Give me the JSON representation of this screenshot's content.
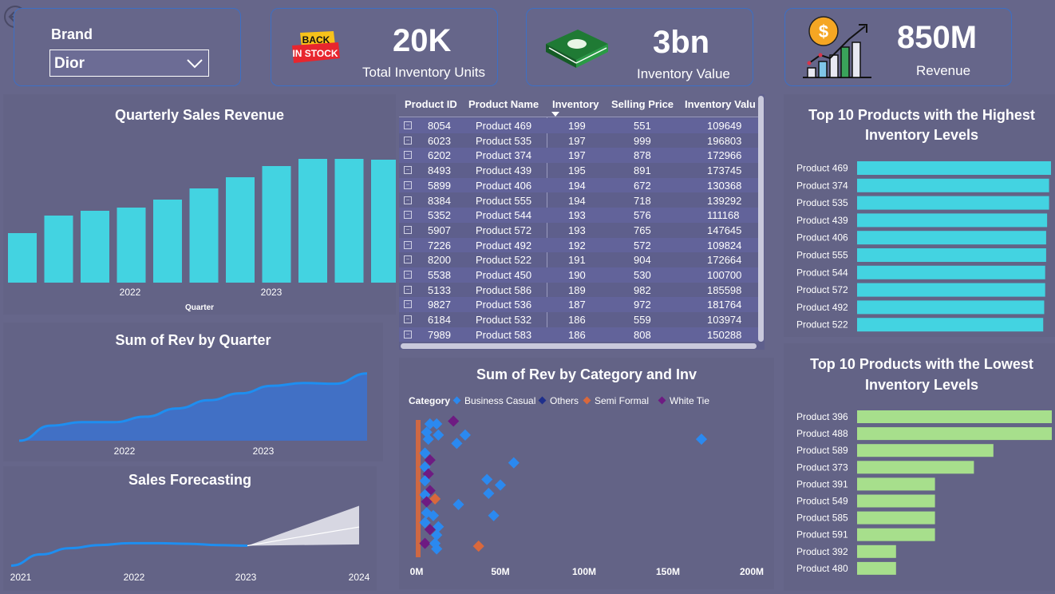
{
  "filter": {
    "label": "Brand",
    "selected": "Dior"
  },
  "kpis": [
    {
      "value": "20K",
      "label": "Total Inventory Units",
      "icon": "back-in-stock-icon",
      "icon_text": [
        "BACK",
        "IN STOCK"
      ]
    },
    {
      "value": "3bn",
      "label": "Inventory Value",
      "icon": "money-stack-icon"
    },
    {
      "value": "850M",
      "label": "Revenue",
      "icon": "revenue-growth-icon"
    }
  ],
  "table": {
    "columns": [
      "Product ID",
      "Product Name",
      "Inventory",
      "Selling Price",
      "Inventory Valu"
    ],
    "rows": [
      [
        "8054",
        "Product 469",
        "199",
        "551",
        "109649"
      ],
      [
        "6023",
        "Product 535",
        "197",
        "999",
        "196803"
      ],
      [
        "6202",
        "Product 374",
        "197",
        "878",
        "172966"
      ],
      [
        "8493",
        "Product 439",
        "195",
        "891",
        "173745"
      ],
      [
        "5899",
        "Product 406",
        "194",
        "672",
        "130368"
      ],
      [
        "8384",
        "Product 555",
        "194",
        "718",
        "139292"
      ],
      [
        "5352",
        "Product 544",
        "193",
        "576",
        "111168"
      ],
      [
        "5907",
        "Product 572",
        "193",
        "765",
        "147645"
      ],
      [
        "7226",
        "Product 492",
        "192",
        "572",
        "109824"
      ],
      [
        "8200",
        "Product 522",
        "191",
        "904",
        "172664"
      ],
      [
        "5538",
        "Product 450",
        "190",
        "530",
        "100700"
      ],
      [
        "5133",
        "Product 586",
        "189",
        "982",
        "185598"
      ],
      [
        "9827",
        "Product 536",
        "187",
        "972",
        "181764"
      ],
      [
        "6184",
        "Product 532",
        "186",
        "559",
        "103974"
      ],
      [
        "7989",
        "Product 583",
        "186",
        "808",
        "150288"
      ]
    ]
  },
  "chart_data": [
    {
      "id": "quarterly",
      "type": "bar",
      "title": "Quarterly Sales Revenue",
      "xlabel": "Quarter",
      "ylabel": "",
      "year_ticks": [
        "2022",
        "2023"
      ],
      "values": [
        62,
        84,
        90,
        94,
        104,
        118,
        132,
        146,
        155,
        155,
        154,
        166
      ],
      "ylim": [
        0,
        170
      ],
      "color": "#43d3e1"
    },
    {
      "id": "rev_quarter",
      "type": "area",
      "title": "Sum of Rev by Quarter",
      "x_ticks": [
        "2022",
        "2023"
      ],
      "values": [
        0,
        22,
        27,
        27,
        35,
        47,
        59,
        69,
        80,
        84,
        83,
        98
      ],
      "ylim": [
        0,
        100
      ],
      "color": "#3f71c8"
    },
    {
      "id": "forecast",
      "type": "line",
      "title": "Sales Forecasting",
      "x_ticks": [
        "2021",
        "2022",
        "2023",
        "2024"
      ],
      "actual": [
        0.02,
        0.2,
        0.3,
        0.35,
        0.38,
        0.38,
        0.37,
        0.35,
        0.34
      ],
      "forecast": [
        0.34,
        0.64
      ],
      "band_upper": [
        0.34,
        0.98
      ],
      "band_lower": [
        0.34,
        0.36
      ],
      "ylim": [
        0,
        1
      ],
      "color": "#1e8ef0"
    },
    {
      "id": "scatter",
      "type": "scatter",
      "title": "Sum of Rev by Category and Inv",
      "legend_title": "Category",
      "legend": [
        {
          "name": "Business Casual",
          "color": "#2b89ef"
        },
        {
          "name": "Others",
          "color": "#1f2f8c"
        },
        {
          "name": "Semi Formal",
          "color": "#d9683c"
        },
        {
          "name": "White Tie",
          "color": "#6e1b82"
        }
      ],
      "x_ticks": [
        "0M",
        "50M",
        "100M",
        "150M",
        "200M"
      ],
      "xlim": [
        0,
        200
      ],
      "ylim": [
        0,
        1
      ],
      "points": [
        {
          "x": 8,
          "y": 0.96,
          "c": 0
        },
        {
          "x": 12,
          "y": 0.96,
          "c": 0
        },
        {
          "x": 22,
          "y": 0.98,
          "c": 3
        },
        {
          "x": 6,
          "y": 0.9,
          "c": 0
        },
        {
          "x": 13,
          "y": 0.88,
          "c": 0
        },
        {
          "x": 29,
          "y": 0.88,
          "c": 0
        },
        {
          "x": 7,
          "y": 0.85,
          "c": 0
        },
        {
          "x": 24,
          "y": 0.82,
          "c": 0
        },
        {
          "x": 170,
          "y": 0.85,
          "c": 0
        },
        {
          "x": 5,
          "y": 0.75,
          "c": 0
        },
        {
          "x": 8,
          "y": 0.7,
          "c": 3
        },
        {
          "x": 58,
          "y": 0.68,
          "c": 0
        },
        {
          "x": 5,
          "y": 0.65,
          "c": 0
        },
        {
          "x": 7,
          "y": 0.6,
          "c": 3
        },
        {
          "x": 42,
          "y": 0.56,
          "c": 0
        },
        {
          "x": 5,
          "y": 0.55,
          "c": 0
        },
        {
          "x": 50,
          "y": 0.52,
          "c": 0
        },
        {
          "x": 8,
          "y": 0.48,
          "c": 3
        },
        {
          "x": 43,
          "y": 0.46,
          "c": 0
        },
        {
          "x": 5,
          "y": 0.45,
          "c": 0
        },
        {
          "x": 11,
          "y": 0.42,
          "c": 2
        },
        {
          "x": 6,
          "y": 0.4,
          "c": 3
        },
        {
          "x": 25,
          "y": 0.38,
          "c": 0
        },
        {
          "x": 6,
          "y": 0.32,
          "c": 0
        },
        {
          "x": 10,
          "y": 0.3,
          "c": 0
        },
        {
          "x": 46,
          "y": 0.3,
          "c": 0
        },
        {
          "x": 5,
          "y": 0.25,
          "c": 0
        },
        {
          "x": 13,
          "y": 0.22,
          "c": 0
        },
        {
          "x": 8,
          "y": 0.2,
          "c": 3
        },
        {
          "x": 12,
          "y": 0.16,
          "c": 0
        },
        {
          "x": 5,
          "y": 0.1,
          "c": 3
        },
        {
          "x": 11,
          "y": 0.1,
          "c": 0
        },
        {
          "x": 37,
          "y": 0.08,
          "c": 2
        },
        {
          "x": 12,
          "y": 0.06,
          "c": 0
        }
      ]
    },
    {
      "id": "top10",
      "type": "bar",
      "orientation": "horizontal",
      "title": "Top 10 Products with the Highest Inventory Levels",
      "categories": [
        "Product 469",
        "Product 374",
        "Product 535",
        "Product 439",
        "Product 406",
        "Product 555",
        "Product 544",
        "Product 572",
        "Product 492",
        "Product 522"
      ],
      "values": [
        199,
        197,
        197,
        195,
        194,
        194,
        193,
        193,
        192,
        191
      ],
      "xlim": [
        0,
        199
      ],
      "color": "#43d3e1"
    },
    {
      "id": "bottom10",
      "type": "bar",
      "orientation": "horizontal",
      "title": "Top 10 Products with the Lowest Inventory Levels",
      "categories": [
        "Product 396",
        "Product 488",
        "Product 589",
        "Product 373",
        "Product 391",
        "Product 549",
        "Product 585",
        "Product 591",
        "Product 392",
        "Product 480"
      ],
      "values": [
        10,
        10,
        7,
        6,
        4,
        4,
        4,
        4,
        2,
        2
      ],
      "xlim": [
        0,
        10
      ],
      "color": "#a7df8c"
    }
  ]
}
